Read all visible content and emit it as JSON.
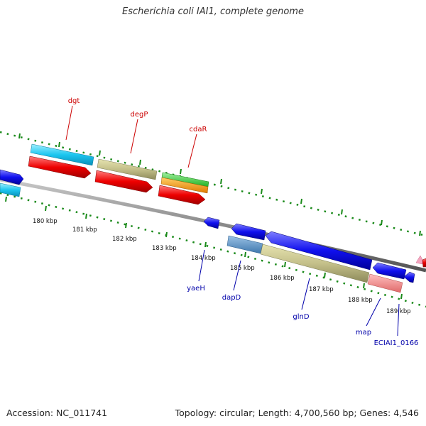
{
  "title": "Escherichia coli IAI1, complete genome",
  "footer": {
    "accession": "Accession: NC_011741",
    "summary": "Topology: circular; Length: 4,700,560 bp; Genes: 4,546"
  },
  "scale_labels": [
    "180 kbp",
    "181 kbp",
    "182 kbp",
    "183 kbp",
    "184 kbp",
    "185 kbp",
    "186 kbp",
    "187 kbp",
    "188 kbp",
    "189 kbp"
  ],
  "genes_forward": [
    "dgt",
    "degP",
    "cdaR"
  ],
  "genes_reverse": [
    "yaeH",
    "dapD",
    "glnD",
    "map",
    "ECIAI1_0166"
  ],
  "colors": {
    "forward_label": "#cc0000",
    "reverse_label": "#0000aa",
    "backbone": "#888888",
    "tick": "#1a8a1a"
  }
}
